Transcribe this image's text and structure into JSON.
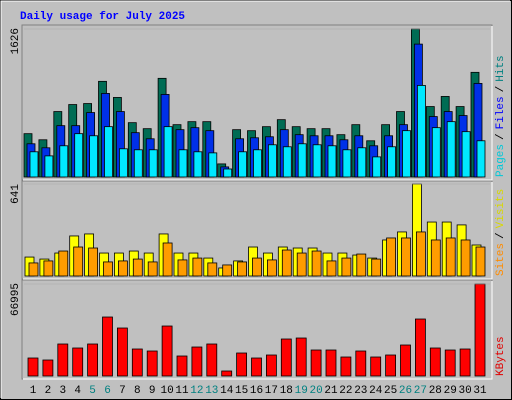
{
  "title": "Daily usage for July 2025",
  "title_color": "#0000ff",
  "highlight_categories": [
    "5",
    "6",
    "12",
    "13",
    "19",
    "20",
    "26",
    "27"
  ],
  "highlight_color": "#008080",
  "legend_separator": "/",
  "chart_data": [
    {
      "type": "bar",
      "ylim": [
        0,
        1626
      ],
      "yticks": [
        1626
      ],
      "series": [
        {
          "name": "Hits",
          "color": "#006c54",
          "label_color": "#008080",
          "values": [
            476,
            409,
            719,
            796,
            807,
            1051,
            874,
            597,
            531,
            1084,
            575,
            608,
            608,
            144,
            520,
            509,
            553,
            630,
            553,
            531,
            531,
            465,
            575,
            398,
            575,
            719,
            1626,
            774,
            885,
            774,
            1150
          ]
        },
        {
          "name": "Files",
          "color": "#0030e8",
          "label_color": "#0000ff",
          "values": [
            365,
            321,
            564,
            564,
            708,
            918,
            719,
            487,
            420,
            907,
            520,
            542,
            509,
            111,
            420,
            431,
            442,
            520,
            465,
            453,
            453,
            409,
            453,
            343,
            453,
            575,
            1460,
            664,
            719,
            675,
            1028
          ]
        },
        {
          "name": "Pages",
          "color": "#00e8ff",
          "label_color": "#00c8d8",
          "values": [
            277,
            232,
            343,
            476,
            453,
            553,
            310,
            299,
            299,
            553,
            299,
            277,
            265,
            88,
            277,
            299,
            354,
            332,
            365,
            354,
            343,
            299,
            321,
            221,
            332,
            509,
            1006,
            542,
            608,
            498,
            398
          ]
        }
      ]
    },
    {
      "type": "bar",
      "ylim": [
        0,
        641
      ],
      "yticks": [
        641
      ],
      "series": [
        {
          "name": "Visits",
          "color": "#ffff00",
          "label_color": "#d8d800",
          "values": [
            132,
            118,
            160,
            279,
            293,
            160,
            160,
            174,
            160,
            293,
            160,
            160,
            125,
            56,
            105,
            202,
            160,
            202,
            195,
            195,
            160,
            160,
            146,
            125,
            251,
            307,
            641,
            376,
            376,
            356,
            216
          ]
        },
        {
          "name": "Sites",
          "color": "#ff9c00",
          "label_color": "#ff8c00",
          "values": [
            91,
            105,
            174,
            202,
            195,
            98,
            105,
            118,
            98,
            230,
            112,
            125,
            91,
            77,
            98,
            125,
            112,
            181,
            160,
            174,
            105,
            125,
            153,
            118,
            265,
            265,
            307,
            251,
            265,
            251,
            202
          ]
        }
      ]
    },
    {
      "type": "bar",
      "ylim": [
        0,
        66995
      ],
      "yticks": [
        66995
      ],
      "categories": [
        "1",
        "2",
        "3",
        "4",
        "5",
        "6",
        "7",
        "8",
        "9",
        "10",
        "11",
        "12",
        "13",
        "14",
        "15",
        "16",
        "17",
        "18",
        "19",
        "20",
        "21",
        "22",
        "23",
        "24",
        "25",
        "26",
        "27",
        "28",
        "29",
        "30",
        "31"
      ],
      "series": [
        {
          "name": "KBytes",
          "color": "#ff0000",
          "label_color": "#e00000",
          "values": [
            13104,
            11650,
            23300,
            20390,
            23300,
            42950,
            34940,
            19660,
            18200,
            36400,
            14560,
            21110,
            23300,
            3640,
            16740,
            13100,
            15290,
            26940,
            27660,
            18930,
            18930,
            13830,
            18200,
            13830,
            15290,
            22570,
            41500,
            20390,
            18930,
            19660,
            66995
          ]
        }
      ]
    }
  ]
}
